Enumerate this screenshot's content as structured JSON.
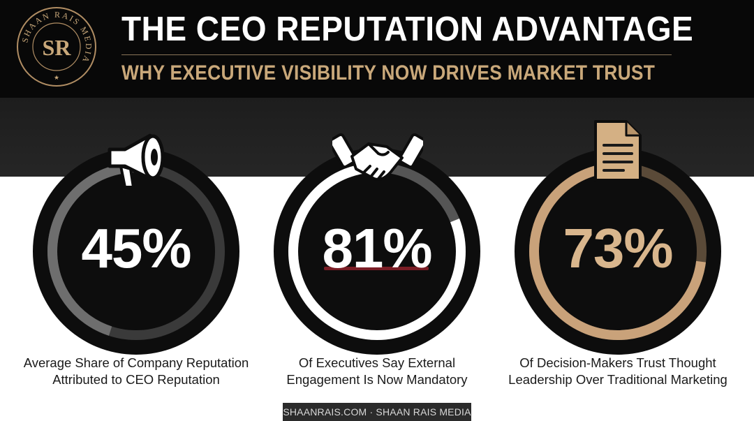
{
  "header": {
    "title": "THE CEO REPUTATION ADVANTAGE",
    "subtitle": "WHY EXECUTIVE VISIBILITY NOW DRIVES MARKET TRUST",
    "logo": {
      "ring_text": "SHAAN RAIS MEDIA",
      "monogram": "SR",
      "star": "★",
      "icon": "brand-seal-icon"
    }
  },
  "stats": [
    {
      "value": "45%",
      "fraction": 0.45,
      "caption_line1": "Average Share of Company Reputation",
      "caption_line2": "Attributed to CEO Reputation",
      "icon": "megaphone-icon",
      "progress_color": "#6e6e6e"
    },
    {
      "value": "81%",
      "fraction": 0.81,
      "caption_line1": "Of Executives Say External",
      "caption_line2": "Engagement Is Now Mandatory",
      "icon": "handshake-icon",
      "progress_color": "#ffffff",
      "accent_color": "#7a1d25"
    },
    {
      "value": "73%",
      "fraction": 0.73,
      "caption_line1": "Of Decision-Makers Trust Thought",
      "caption_line2": "Leadership Over Traditional Marketing",
      "icon": "document-icon",
      "progress_color": "#c9a27a",
      "value_color": "#d9b68d"
    }
  ],
  "footer": {
    "text": "SHAANRAIS.COM · SHAAN RAIS MEDIA"
  },
  "colors": {
    "header_bg": "#080808",
    "gold": "#c9a87a",
    "ring_dark": "#0d0d0d",
    "track_gray": "#555555"
  }
}
